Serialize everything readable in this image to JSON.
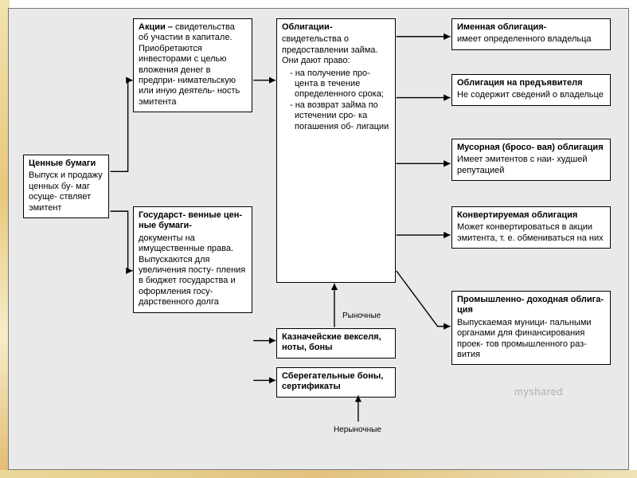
{
  "diagram": {
    "type": "flowchart",
    "background": "#e9e9e9",
    "box_border": "#000000",
    "box_fill": "#ffffff",
    "arrow_color": "#000000",
    "labels": {
      "market": "Рыночные",
      "nonmarket": "Нерыночные"
    },
    "watermark": "myshared",
    "nodes": {
      "root": {
        "title": "Ценные бумаги",
        "body": "Выпуск и продажу ценных бу- маг осуще- ствляет эмитент"
      },
      "stocks": {
        "title": "Акции –",
        "body": "свидетельства об участии в капитале. Приобретаются инвесторами с целью вложения денег в предпри- нимательскую или иную деятель- ность эмитента"
      },
      "gov": {
        "title": "Государст- венные цен- ные бумаги-",
        "body": "документы на имущественные права. Выпускаются для увеличения посту- пления в бюджет государства и оформления госу- дарственного долга"
      },
      "bonds": {
        "title": "Облигации-",
        "body_intro": "свидетельства о предоставлении займа. Они дают право:",
        "bullets": [
          "на получение про- цента в течение определенного срока;",
          "на возврат займа по истечении сро- ка погашения об- лигации"
        ]
      },
      "treasury": {
        "title": "Казначейские векселя, ноты, боны"
      },
      "savings": {
        "title": "Сберегательные боны, сертификаты"
      },
      "named": {
        "title": "Именная облигация-",
        "body": "имеет определенного владельца"
      },
      "bearer": {
        "title": "Облигация на предъявителя",
        "body": "Не содержит сведений о владельце"
      },
      "junk": {
        "title": "Мусорная (бросо- вая) облигация",
        "body": "Имеет эмитентов с наи- худшей репутацией"
      },
      "conv": {
        "title": "Конвертируемая облигация",
        "body": "Может конвертироваться в акции эмитента, т. е. обмениваться на них"
      },
      "indust": {
        "title": "Промышленно- доходная облига- ция",
        "body": "Выпускаемая муници- пальными органами для финансирования проек- тов промышленного раз- вития"
      }
    }
  }
}
